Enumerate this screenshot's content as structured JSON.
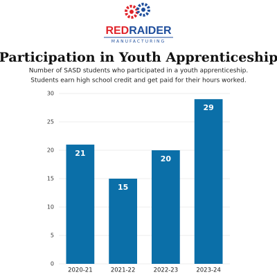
{
  "logo": {
    "name_red": "RED",
    "name_blue": "RAIDER",
    "tagline": "MANUFACTURING"
  },
  "chart_data": {
    "type": "bar",
    "title": "Participation in Youth Apprenticeship",
    "subtitle": [
      "Number of SASD students who participated in a youth apprenticeship.",
      "Students earn high school credit and get paid for their hours worked."
    ],
    "categories": [
      "2020-21",
      "2021-22",
      "2022-23",
      "2023-24"
    ],
    "values": [
      21,
      15,
      20,
      29
    ],
    "color": "#0b6fa8",
    "ylim": [
      0,
      30
    ],
    "yticks": [
      0,
      5,
      10,
      15,
      20,
      25,
      30
    ],
    "grid": true
  }
}
